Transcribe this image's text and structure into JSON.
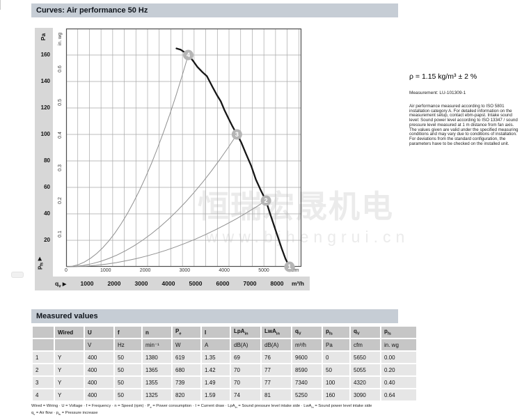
{
  "header": {
    "title": "Curves: Air performance 50 Hz"
  },
  "icons": {
    "arrow_right": "▶"
  },
  "right_panel": {
    "density_line": "ρ = 1.15 kg/m³ ± 2 %",
    "measurement_label": "Measurement: LU-101309-1",
    "note": "Air performance measured according to ISO 5801 installation category A. For detailed information on the measurement setup, contact ebm-papst. Intake sound level: Sound power level according to ISO 13347 / sound pressure level measured at 1 m distance from fan axis. The values given are valid under the specified measuring conditions and may vary due to conditions of installation. For deviations from the standard configuration, the parameters have to be checked on the installed unit."
  },
  "watermark": {
    "cjk": "恒瑞宏晟机电",
    "url": "www.bjhengrui.cn"
  },
  "chart_data": {
    "type": "line",
    "title": "Curves: Air performance 50 Hz",
    "x_axis": {
      "primary_label": "q~v~",
      "primary_unit": "m³/h",
      "primary_ticks": [
        1000,
        2000,
        3000,
        4000,
        5000,
        6000,
        7000,
        8000
      ],
      "secondary_unit": "cfm",
      "secondary_ticks": [
        0,
        1000,
        2000,
        3000,
        4000,
        5000
      ],
      "grid_step_m3h": 500,
      "range_cfm": [
        0,
        5950
      ]
    },
    "y_axis": {
      "primary_label": "p~fs~",
      "primary_unit": "Pa",
      "primary_ticks": [
        160,
        140,
        120,
        100,
        80,
        60,
        40,
        20
      ],
      "secondary_unit": "in. wg",
      "secondary_ticks": [
        0.6,
        0.5,
        0.4,
        0.3,
        0.2,
        0.1
      ],
      "grid_step_pa": 20,
      "range_pa": [
        0,
        180
      ],
      "pa_per_inwg": 248.84
    },
    "fan_curve": {
      "name": "Air performance 50 Hz",
      "points_cfm_pa": [
        [
          2790,
          165
        ],
        [
          2900,
          164
        ],
        [
          3000,
          162
        ],
        [
          3090,
          160
        ],
        [
          3200,
          156
        ],
        [
          3320,
          151
        ],
        [
          3450,
          147
        ],
        [
          3561,
          144
        ],
        [
          3700,
          136
        ],
        [
          3810,
          130
        ],
        [
          3912,
          125
        ],
        [
          4010,
          118
        ],
        [
          4110,
          112
        ],
        [
          4210,
          106
        ],
        [
          4320,
          100
        ],
        [
          4430,
          94
        ],
        [
          4540,
          86
        ],
        [
          4684,
          76
        ],
        [
          4800,
          66
        ],
        [
          4920,
          58
        ],
        [
          5055,
          50
        ],
        [
          5150,
          41
        ],
        [
          5250,
          32
        ],
        [
          5350,
          23
        ],
        [
          5450,
          14
        ],
        [
          5550,
          6
        ],
        [
          5650,
          0
        ]
      ]
    },
    "operating_points": [
      {
        "id": "4",
        "cfm": 3090,
        "pa": 160,
        "system_curve": true
      },
      {
        "id": "3",
        "cfm": 4320,
        "pa": 100,
        "system_curve": true
      },
      {
        "id": "2",
        "cfm": 5055,
        "pa": 50,
        "system_curve": true
      },
      {
        "id": "1",
        "cfm": 5650,
        "pa": 0,
        "system_curve": false
      }
    ]
  },
  "measured_values": {
    "title": "Measured values",
    "columns": [
      "",
      "Wired",
      "U",
      "f",
      "n",
      "P~e~",
      "I",
      "LpA~in~",
      "LwA~in~",
      "q~V~",
      "p~fs~",
      "q~V~",
      "p~fs~"
    ],
    "units": [
      "",
      "",
      "V",
      "Hz",
      "min⁻¹",
      "W",
      "A",
      "dB(A)",
      "dB(A)",
      "m³/h",
      "Pa",
      "cfm",
      "in. wg"
    ],
    "rows": [
      [
        "1",
        "Y",
        "400",
        "50",
        "1380",
        "619",
        "1.35",
        "69",
        "76",
        "9600",
        "0",
        "5650",
        "0.00"
      ],
      [
        "2",
        "Y",
        "400",
        "50",
        "1365",
        "680",
        "1.42",
        "70",
        "77",
        "8590",
        "50",
        "5055",
        "0.20"
      ],
      [
        "3",
        "Y",
        "400",
        "50",
        "1355",
        "739",
        "1.49",
        "70",
        "77",
        "7340",
        "100",
        "4320",
        "0.40"
      ],
      [
        "4",
        "Y",
        "400",
        "50",
        "1325",
        "820",
        "1.59",
        "74",
        "81",
        "5250",
        "160",
        "3090",
        "0.64"
      ]
    ],
    "footnote_line1": "Wired = Wiring · U = Voltage · f = Frequency · n = Speed (rpm) · P~e~ = Power consumption · I = Current draw · LpA~in~ = Sound pressure level intake side · LwA~in~ = Sound power level intake side",
    "footnote_line2": "q~v~ = Air flow · p~fs~ = Pressure increase"
  },
  "colors": {
    "title_bar": "#c6cdd5",
    "axis_band": "#d7d7d7",
    "grid": "#a8a8a8",
    "frame": "#4d4d4d",
    "fan_curve": "#161616",
    "system_curve": "#8f8f8f",
    "marker_fill": "#b5b5b5",
    "marker_text": "#ffffff",
    "table_header": "#c6c6c6",
    "table_cell": "#e6e6e6"
  }
}
